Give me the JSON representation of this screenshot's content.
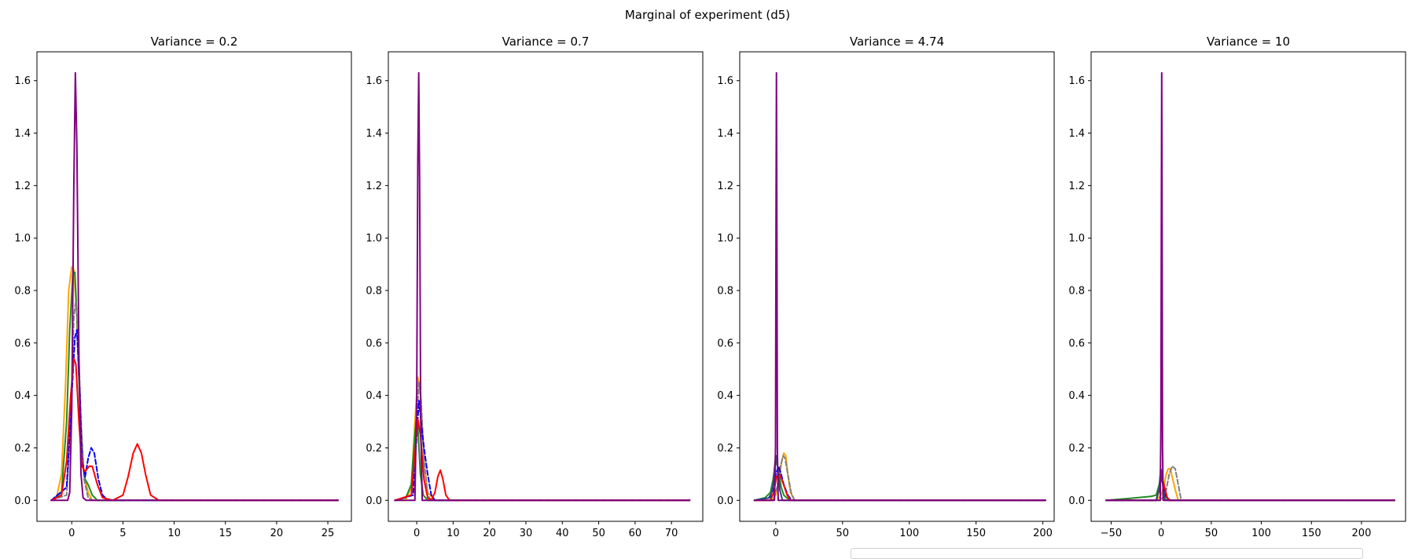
{
  "figure": {
    "suptitle": "Marginal of experiment (d5)"
  },
  "chart_data": [
    {
      "type": "line",
      "title": "Variance = 0.2",
      "xlabel": "",
      "ylabel": "",
      "xlim": [
        -3.4,
        27.3
      ],
      "ylim": [
        -0.08,
        1.71
      ],
      "xticks": [
        0,
        5,
        10,
        15,
        20,
        25
      ],
      "yticks": [
        0.0,
        0.2,
        0.4,
        0.6,
        0.8,
        1.0,
        1.2,
        1.4,
        1.6
      ],
      "grid": false,
      "series": [
        {
          "color": "#ffa500",
          "dash": false,
          "x": [
            -2.0,
            -1.5,
            -1.0,
            -0.6,
            -0.3,
            0.0,
            0.2,
            0.5,
            0.8,
            1.2,
            1.6,
            2.0,
            3.0,
            26.0
          ],
          "y": [
            0.0,
            0.01,
            0.1,
            0.45,
            0.8,
            0.89,
            0.88,
            0.7,
            0.35,
            0.1,
            0.03,
            0.0,
            0.0,
            0.0
          ]
        },
        {
          "color": "#228b22",
          "dash": false,
          "x": [
            -2.0,
            -1.0,
            -0.5,
            -0.2,
            0.1,
            0.3,
            0.5,
            0.8,
            1.0,
            1.3,
            1.6,
            2.0,
            2.5,
            3.0,
            26.0
          ],
          "y": [
            0.0,
            0.03,
            0.3,
            0.65,
            0.86,
            0.87,
            0.7,
            0.35,
            0.15,
            0.08,
            0.06,
            0.02,
            0.0,
            0.0,
            0.0
          ]
        },
        {
          "color": "#808080",
          "dash": true,
          "x": [
            -2.0,
            -0.5,
            -0.1,
            0.2,
            0.4,
            0.6,
            0.9,
            1.2,
            1.6,
            2.0,
            26.0
          ],
          "y": [
            0.0,
            0.02,
            0.3,
            0.7,
            0.76,
            0.65,
            0.3,
            0.08,
            0.01,
            0.0,
            0.0
          ]
        },
        {
          "color": "#0000ff",
          "dash": true,
          "x": [
            -2.0,
            -0.5,
            0.0,
            0.3,
            0.5,
            0.8,
            1.0,
            1.3,
            1.6,
            1.9,
            2.2,
            2.6,
            3.0,
            3.5,
            26.0
          ],
          "y": [
            0.0,
            0.05,
            0.4,
            0.62,
            0.65,
            0.4,
            0.15,
            0.09,
            0.16,
            0.2,
            0.18,
            0.08,
            0.02,
            0.0,
            0.0
          ]
        },
        {
          "color": "#ff0000",
          "dash": false,
          "x": [
            -2.0,
            -1.0,
            -0.5,
            -0.1,
            0.2,
            0.4,
            0.7,
            1.0,
            1.3,
            1.7,
            2.0,
            2.5,
            3.0,
            4.0,
            5.0,
            5.5,
            6.0,
            6.4,
            6.8,
            7.2,
            7.7,
            8.5,
            26.0
          ],
          "y": [
            0.0,
            0.02,
            0.15,
            0.4,
            0.54,
            0.52,
            0.3,
            0.13,
            0.11,
            0.13,
            0.13,
            0.06,
            0.01,
            0.0,
            0.02,
            0.09,
            0.18,
            0.215,
            0.18,
            0.1,
            0.02,
            0.0,
            0.0
          ]
        },
        {
          "color": "#800080",
          "dash": false,
          "x": [
            -2.0,
            -0.4,
            -0.2,
            0.0,
            0.2,
            0.35,
            0.5,
            0.7,
            0.9,
            1.1,
            1.4,
            26.0
          ],
          "y": [
            0.0,
            0.0,
            0.03,
            0.35,
            1.2,
            1.63,
            1.35,
            0.55,
            0.1,
            0.01,
            0.0,
            0.0
          ]
        }
      ]
    },
    {
      "type": "line",
      "title": "Variance = 0.7",
      "xlabel": "",
      "ylabel": "",
      "xlim": [
        -7.8,
        78.6
      ],
      "ylim": [
        -0.08,
        1.71
      ],
      "xticks": [
        0,
        10,
        20,
        30,
        40,
        50,
        60,
        70
      ],
      "yticks": [
        0.0,
        0.2,
        0.4,
        0.6,
        0.8,
        1.0,
        1.2,
        1.4,
        1.6
      ],
      "grid": false,
      "series": [
        {
          "color": "#ffa500",
          "dash": false,
          "x": [
            -6.0,
            -3.0,
            -1.5,
            -0.5,
            0.3,
            1.0,
            2.0,
            3.0,
            5.0,
            75.0
          ],
          "y": [
            0.0,
            0.0,
            0.05,
            0.3,
            0.47,
            0.42,
            0.15,
            0.03,
            0.0,
            0.0
          ]
        },
        {
          "color": "#228b22",
          "dash": false,
          "x": [
            -6.0,
            -3.0,
            -1.5,
            -0.8,
            -0.2,
            0.3,
            1.0,
            1.8,
            3.0,
            5.0,
            75.0
          ],
          "y": [
            0.0,
            0.01,
            0.06,
            0.2,
            0.3,
            0.28,
            0.1,
            0.02,
            0.0,
            0.0,
            0.0
          ]
        },
        {
          "color": "#808080",
          "dash": true,
          "x": [
            -6.0,
            -1.0,
            0.0,
            0.6,
            1.2,
            2.0,
            3.0,
            4.0,
            75.0
          ],
          "y": [
            0.0,
            0.02,
            0.3,
            0.45,
            0.38,
            0.15,
            0.02,
            0.0,
            0.0
          ]
        },
        {
          "color": "#0000ff",
          "dash": true,
          "x": [
            -6.0,
            -1.0,
            0.0,
            0.6,
            1.2,
            2.0,
            3.0,
            4.0,
            5.0,
            75.0
          ],
          "y": [
            0.0,
            0.02,
            0.25,
            0.38,
            0.3,
            0.2,
            0.1,
            0.02,
            0.0,
            0.0
          ]
        },
        {
          "color": "#ff0000",
          "dash": false,
          "x": [
            -6.0,
            -1.5,
            -0.5,
            0.3,
            1.0,
            2.0,
            3.0,
            4.0,
            5.0,
            5.8,
            6.5,
            7.2,
            8.0,
            9.0,
            75.0
          ],
          "y": [
            0.0,
            0.02,
            0.18,
            0.31,
            0.25,
            0.08,
            0.01,
            0.0,
            0.03,
            0.09,
            0.115,
            0.08,
            0.02,
            0.0,
            0.0
          ]
        },
        {
          "color": "#800080",
          "dash": false,
          "x": [
            -6.0,
            -0.5,
            0.0,
            0.3,
            0.55,
            0.8,
            1.1,
            1.5,
            75.0
          ],
          "y": [
            0.0,
            0.0,
            0.4,
            1.3,
            1.63,
            1.2,
            0.3,
            0.0,
            0.0
          ]
        }
      ]
    },
    {
      "type": "line",
      "title": "Variance = 4.74",
      "xlabel": "",
      "ylabel": "",
      "xlim": [
        -27.0,
        208.5
      ],
      "ylim": [
        -0.08,
        1.71
      ],
      "xticks": [
        0,
        50,
        100,
        150,
        200
      ],
      "yticks": [
        0.0,
        0.2,
        0.4,
        0.6,
        0.8,
        1.0,
        1.2,
        1.4,
        1.6
      ],
      "grid": false,
      "series": [
        {
          "color": "#ffa500",
          "dash": false,
          "x": [
            -16.0,
            -3.0,
            0.0,
            2.5,
            4.5,
            6.0,
            7.5,
            9.0,
            11.0,
            14.0,
            202.0
          ],
          "y": [
            0.0,
            0.0,
            0.02,
            0.08,
            0.15,
            0.18,
            0.17,
            0.1,
            0.03,
            0.0,
            0.0
          ]
        },
        {
          "color": "#228b22",
          "dash": false,
          "x": [
            -16.0,
            -8.0,
            -4.0,
            -2.0,
            0.0,
            2.0,
            4.0,
            6.0,
            8.0,
            12.0,
            202.0
          ],
          "y": [
            0.0,
            0.01,
            0.03,
            0.08,
            0.15,
            0.12,
            0.05,
            0.02,
            0.01,
            0.0,
            0.0
          ]
        },
        {
          "color": "#808080",
          "dash": true,
          "x": [
            -16.0,
            -2.0,
            1.0,
            3.5,
            5.5,
            7.0,
            9.0,
            11.5,
            14.0,
            202.0
          ],
          "y": [
            0.0,
            0.0,
            0.05,
            0.13,
            0.17,
            0.16,
            0.1,
            0.03,
            0.0,
            0.0
          ]
        },
        {
          "color": "#0000ff",
          "dash": true,
          "x": [
            -16.0,
            -5.0,
            -2.0,
            0.0,
            2.0,
            4.0,
            6.0,
            9.0,
            12.0,
            202.0
          ],
          "y": [
            0.0,
            0.01,
            0.04,
            0.1,
            0.13,
            0.1,
            0.06,
            0.02,
            0.0,
            0.0
          ]
        },
        {
          "color": "#ff0000",
          "dash": false,
          "x": [
            -16.0,
            -4.0,
            -1.5,
            0.5,
            2.5,
            4.5,
            6.5,
            8.5,
            11.0,
            202.0
          ],
          "y": [
            0.0,
            0.0,
            0.03,
            0.09,
            0.1,
            0.08,
            0.05,
            0.02,
            0.0,
            0.0
          ]
        },
        {
          "color": "#2f4f6f",
          "dash": false,
          "x": [
            -16.0,
            -4.0,
            -2.0,
            -0.5,
            0.5,
            1.5,
            3.0,
            5.0,
            202.0
          ],
          "y": [
            0.0,
            0.01,
            0.06,
            0.15,
            0.17,
            0.12,
            0.04,
            0.0,
            0.0
          ]
        },
        {
          "color": "#800080",
          "dash": false,
          "x": [
            -16.0,
            -1.0,
            -0.2,
            0.2,
            0.5,
            0.8,
            1.2,
            1.8,
            202.0
          ],
          "y": [
            0.0,
            0.0,
            0.2,
            1.1,
            1.63,
            1.1,
            0.2,
            0.0,
            0.0
          ]
        }
      ]
    },
    {
      "type": "line",
      "title": "Variance = 10",
      "xlabel": "",
      "ylabel": "",
      "xlim": [
        -70.0,
        244.0
      ],
      "ylim": [
        -0.08,
        1.71
      ],
      "xticks": [
        -50,
        0,
        50,
        100,
        150,
        200
      ],
      "yticks": [
        0.0,
        0.2,
        0.4,
        0.6,
        0.8,
        1.0,
        1.2,
        1.4,
        1.6
      ],
      "grid": false,
      "series": [
        {
          "color": "#ffa500",
          "dash": false,
          "x": [
            -55.0,
            -5.0,
            0.0,
            3.0,
            5.0,
            7.0,
            9.0,
            11.0,
            14.0,
            17.0,
            233.0
          ],
          "y": [
            0.0,
            0.0,
            0.02,
            0.06,
            0.1,
            0.12,
            0.12,
            0.09,
            0.04,
            0.0,
            0.0
          ]
        },
        {
          "color": "#228b22",
          "dash": false,
          "x": [
            -55.0,
            -30.0,
            -10.0,
            -5.0,
            -2.0,
            0.0,
            2.0,
            4.0,
            6.0,
            10.0,
            233.0
          ],
          "y": [
            0.0,
            0.008,
            0.015,
            0.02,
            0.06,
            0.1,
            0.06,
            0.02,
            0.005,
            0.0,
            0.0
          ]
        },
        {
          "color": "#808080",
          "dash": true,
          "x": [
            -55.0,
            0.0,
            5.0,
            8.0,
            11.0,
            14.0,
            17.0,
            20.0,
            233.0
          ],
          "y": [
            0.0,
            0.0,
            0.04,
            0.1,
            0.13,
            0.12,
            0.06,
            0.0,
            0.0
          ]
        },
        {
          "color": "#0000ff",
          "dash": true,
          "x": [
            -55.0,
            -5.0,
            -2.0,
            0.0,
            2.0,
            4.0,
            8.0,
            233.0
          ],
          "y": [
            0.0,
            0.0,
            0.04,
            0.09,
            0.06,
            0.02,
            0.0,
            0.0
          ]
        },
        {
          "color": "#ff0000",
          "dash": false,
          "x": [
            -55.0,
            -5.0,
            -2.0,
            0.0,
            2.0,
            4.0,
            6.0,
            9.0,
            233.0
          ],
          "y": [
            0.0,
            0.0,
            0.04,
            0.08,
            0.07,
            0.04,
            0.01,
            0.0,
            0.0
          ]
        },
        {
          "color": "#2f4f6f",
          "dash": false,
          "x": [
            -55.0,
            -5.0,
            -2.0,
            -0.5,
            0.5,
            2.0,
            4.0,
            233.0
          ],
          "y": [
            0.0,
            0.0,
            0.05,
            0.12,
            0.11,
            0.04,
            0.0,
            0.0
          ]
        },
        {
          "color": "#800080",
          "dash": false,
          "x": [
            -55.0,
            -1.0,
            -0.3,
            0.2,
            0.5,
            0.8,
            1.3,
            2.0,
            233.0
          ],
          "y": [
            0.0,
            0.0,
            0.3,
            1.2,
            1.63,
            1.2,
            0.2,
            0.0,
            0.0
          ]
        }
      ]
    }
  ]
}
